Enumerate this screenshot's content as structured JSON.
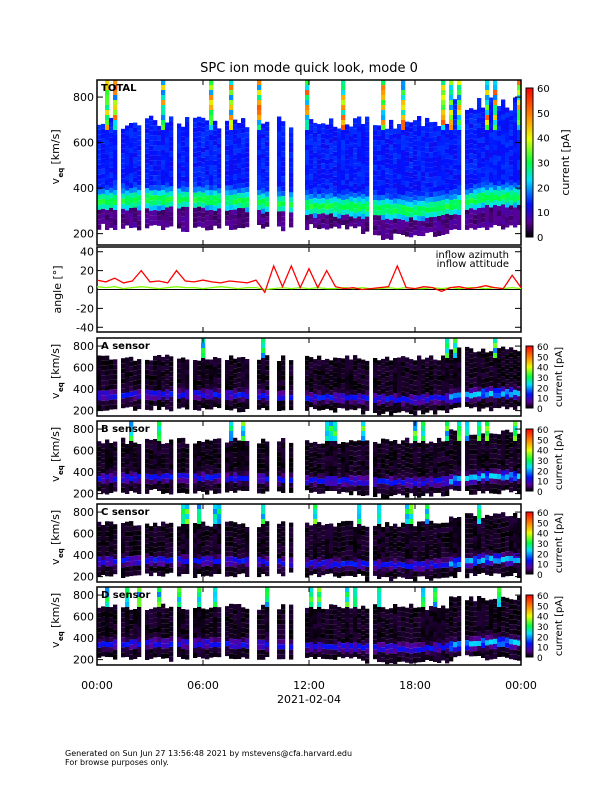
{
  "title": "SPC ion mode quick look, mode 0",
  "footer": {
    "line1": "Generated on Sun Jun 27 13:56:48 2021 by mstevens@cfa.harvard.edu",
    "line2": "For browse purposes only."
  },
  "colors": {
    "azimuth": "#ff0000",
    "altitude": "#80ff00"
  },
  "chart_data": {
    "type": "heatmap",
    "title": "SPC ion mode quick look, mode 0",
    "xlabel": "2021-02-04",
    "x_ticks": [
      "00:00",
      "06:00",
      "12:00",
      "18:00",
      "00:00"
    ],
    "x_range_hours": [
      0,
      24
    ],
    "data_gaps_hours": [
      [
        1.15,
        1.35
      ],
      [
        2.5,
        2.65
      ],
      [
        3.3,
        3.45
      ],
      [
        4.35,
        4.5
      ],
      [
        5.25,
        5.4
      ],
      [
        6.95,
        7.25
      ],
      [
        8.65,
        8.95
      ],
      [
        9.75,
        10.15
      ],
      [
        10.55,
        10.95
      ],
      [
        11.2,
        11.75
      ],
      [
        15.5,
        15.6
      ],
      [
        20.7,
        20.75
      ],
      [
        22.4,
        22.45
      ]
    ],
    "panels": [
      {
        "label": "TOTAL",
        "ylabel": "v",
        "ylabel_sub": "eq",
        "yunit": "[km/s]",
        "ylim": [
          150,
          875
        ],
        "yticks": [
          "200",
          "400",
          "600",
          "800"
        ],
        "ytick_values": [
          200,
          400,
          600,
          800
        ],
        "style": "total",
        "colorbar": {
          "label": "current [pA]",
          "range": [
            0,
            60
          ],
          "ticks": [
            "0",
            "10",
            "20",
            "30",
            "40",
            "50",
            "60"
          ]
        }
      },
      {
        "label": "A sensor",
        "ylabel": "v",
        "ylabel_sub": "eq",
        "yunit": "[km/s]",
        "ylim": [
          150,
          875
        ],
        "yticks": [
          "200",
          "400",
          "600",
          "800"
        ],
        "ytick_values": [
          200,
          400,
          600,
          800
        ],
        "style": "sensor",
        "colorbar": {
          "label": "current [pA]",
          "range": [
            0,
            60
          ],
          "ticks": [
            "0",
            "10",
            "20",
            "30",
            "40",
            "50",
            "60"
          ]
        }
      },
      {
        "label": "B sensor",
        "ylabel": "v",
        "ylabel_sub": "eq",
        "yunit": "[km/s]",
        "ylim": [
          150,
          875
        ],
        "yticks": [
          "200",
          "400",
          "600",
          "800"
        ],
        "ytick_values": [
          200,
          400,
          600,
          800
        ],
        "style": "sensor",
        "colorbar": {
          "label": "current [pA]",
          "range": [
            0,
            60
          ],
          "ticks": [
            "0",
            "10",
            "20",
            "30",
            "40",
            "50",
            "60"
          ]
        }
      },
      {
        "label": "C sensor",
        "ylabel": "v",
        "ylabel_sub": "eq",
        "yunit": "[km/s]",
        "ylim": [
          150,
          875
        ],
        "yticks": [
          "200",
          "400",
          "600",
          "800"
        ],
        "ytick_values": [
          200,
          400,
          600,
          800
        ],
        "style": "sensor",
        "colorbar": {
          "label": "current [pA]",
          "range": [
            0,
            60
          ],
          "ticks": [
            "0",
            "10",
            "20",
            "30",
            "40",
            "50",
            "60"
          ]
        }
      },
      {
        "label": "D sensor",
        "ylabel": "v",
        "ylabel_sub": "eq",
        "yunit": "[km/s]",
        "ylim": [
          150,
          875
        ],
        "yticks": [
          "200",
          "400",
          "600",
          "800"
        ],
        "ytick_values": [
          200,
          400,
          600,
          800
        ],
        "style": "sensor",
        "colorbar": {
          "label": "current [pA]",
          "range": [
            0,
            60
          ],
          "ticks": [
            "0",
            "10",
            "20",
            "30",
            "40",
            "50",
            "60"
          ]
        }
      }
    ],
    "core_speed_hours": [
      0,
      3,
      6,
      9,
      12,
      15,
      18,
      20,
      22,
      24
    ],
    "core_speed_kms": [
      340,
      350,
      350,
      340,
      320,
      315,
      300,
      320,
      360,
      360
    ],
    "angle_panel": {
      "type": "line",
      "ylabel": "angle [°]",
      "ylim": [
        -45,
        45
      ],
      "yticks": [
        "-40",
        "-20",
        "0",
        "20",
        "40"
      ],
      "ytick_values": [
        -40,
        -20,
        0,
        20,
        40
      ],
      "x_hours_step": 0.5,
      "series": [
        {
          "name": "inflow azimuth",
          "values": [
            10,
            8,
            12,
            7,
            9,
            20,
            8,
            9,
            7,
            20,
            9,
            8,
            10,
            8,
            7,
            9,
            8,
            7,
            10,
            -3,
            25,
            3,
            25,
            2,
            22,
            2,
            20,
            3,
            1,
            2,
            0,
            1,
            2,
            3,
            25,
            2,
            1,
            3,
            2,
            -2,
            2,
            3,
            1,
            2,
            4,
            2,
            1,
            15,
            2
          ]
        },
        {
          "name": "inflow attitude",
          "values": [
            3,
            2,
            3,
            1,
            2,
            3,
            2,
            1,
            2,
            3,
            2,
            2,
            1,
            2,
            3,
            2,
            1,
            2,
            2,
            0,
            1,
            2,
            1,
            2,
            1,
            2,
            1,
            1,
            2,
            1,
            2,
            1,
            1,
            2,
            1,
            2,
            1,
            1,
            2,
            1,
            2,
            1,
            2,
            2,
            1,
            2,
            1,
            2,
            1
          ]
        }
      ]
    }
  }
}
